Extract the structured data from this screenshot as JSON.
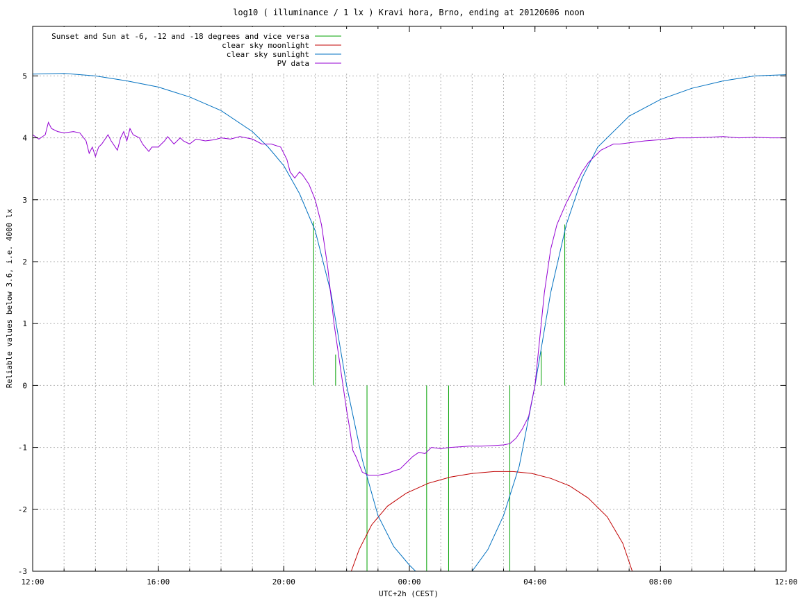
{
  "chart_data": {
    "type": "line",
    "title": "log10 ( illuminance / 1 lx ) Kravi hora, Brno, ending at 20120606 noon",
    "xlabel": "UTC+2h (CEST)",
    "ylabel": "Reliable values below 3.6, i.e. 4000 lx",
    "x_unit": "hours since 12:00 (CEST) on 2012-06-05",
    "xlim": [
      0,
      24
    ],
    "ylim": [
      -3,
      5.8
    ],
    "grid": true,
    "legend_position": "top-left",
    "x_ticks": [
      {
        "value": 0,
        "label": "12:00"
      },
      {
        "value": 4,
        "label": "16:00"
      },
      {
        "value": 8,
        "label": "20:00"
      },
      {
        "value": 12,
        "label": "00:00"
      },
      {
        "value": 16,
        "label": "04:00"
      },
      {
        "value": 20,
        "label": "08:00"
      },
      {
        "value": 24,
        "label": "12:00"
      }
    ],
    "y_ticks": [
      {
        "value": 5,
        "label": "5"
      },
      {
        "value": 4,
        "label": "4"
      },
      {
        "value": 3,
        "label": "3"
      },
      {
        "value": 2,
        "label": "2"
      },
      {
        "value": 1,
        "label": "1"
      },
      {
        "value": 0,
        "label": "0"
      },
      {
        "value": -1,
        "label": "-1"
      },
      {
        "value": -2,
        "label": "-2"
      },
      {
        "value": -3,
        "label": "-3"
      }
    ],
    "series": [
      {
        "name": "Sunset and Sun at -6, -12 and -18 degrees and vice versa",
        "color": "#00a000",
        "style": "impulses",
        "x": [
          8.95,
          9.65,
          10.65,
          12.55,
          13.25,
          15.2,
          16.2,
          16.95
        ],
        "y": [
          2.65,
          0.5,
          0.0,
          0.0,
          0.0,
          0.0,
          0.55,
          2.6
        ]
      },
      {
        "name": "clear sky moonlight",
        "color": "#c00000",
        "x": [
          10.15,
          10.4,
          10.8,
          11.3,
          11.9,
          12.6,
          13.3,
          14.0,
          14.7,
          15.3,
          15.9,
          16.5,
          17.1,
          17.7,
          18.3,
          18.8,
          19.1
        ],
        "y": [
          -3.0,
          -2.65,
          -2.25,
          -1.95,
          -1.74,
          -1.58,
          -1.48,
          -1.42,
          -1.39,
          -1.39,
          -1.42,
          -1.5,
          -1.62,
          -1.82,
          -2.12,
          -2.55,
          -3.0
        ]
      },
      {
        "name": "clear sky sunlight",
        "color": "#0070c0",
        "x": [
          0.0,
          1.0,
          2.0,
          3.0,
          4.0,
          5.0,
          6.0,
          7.0,
          7.5,
          8.0,
          8.5,
          9.0,
          9.5,
          10.0,
          10.5,
          11.0,
          11.5,
          12.0,
          12.5,
          13.0,
          13.5,
          14.0,
          14.5,
          15.0,
          15.5,
          16.0,
          16.5,
          17.0,
          17.5,
          18.0,
          19.0,
          20.0,
          21.0,
          22.0,
          23.0,
          24.0
        ],
        "y": [
          5.03,
          5.04,
          5.0,
          4.92,
          4.82,
          4.66,
          4.44,
          4.1,
          3.85,
          3.55,
          3.1,
          2.5,
          1.5,
          0.0,
          -1.2,
          -2.1,
          -2.6,
          -2.9,
          -3.15,
          -3.25,
          -3.2,
          -3.0,
          -2.65,
          -2.1,
          -1.3,
          0.0,
          1.5,
          2.6,
          3.35,
          3.85,
          4.35,
          4.62,
          4.8,
          4.92,
          5.0,
          5.02
        ]
      },
      {
        "name": "PV data",
        "color": "#9400d3",
        "x": [
          0.0,
          0.2,
          0.4,
          0.5,
          0.6,
          0.8,
          1.0,
          1.3,
          1.5,
          1.7,
          1.8,
          1.9,
          2.0,
          2.1,
          2.2,
          2.4,
          2.5,
          2.7,
          2.8,
          2.9,
          3.0,
          3.1,
          3.2,
          3.4,
          3.5,
          3.7,
          3.8,
          4.0,
          4.2,
          4.3,
          4.5,
          4.7,
          4.8,
          5.0,
          5.2,
          5.5,
          5.8,
          6.0,
          6.3,
          6.6,
          7.0,
          7.3,
          7.6,
          7.9,
          8.1,
          8.2,
          8.35,
          8.5,
          8.6,
          8.8,
          9.0,
          9.2,
          9.4,
          9.6,
          9.8,
          10.0,
          10.1,
          10.2,
          10.3,
          10.5,
          10.7,
          11.0,
          11.3,
          11.5,
          11.7,
          11.9,
          12.1,
          12.3,
          12.5,
          12.7,
          13.0,
          13.3,
          13.6,
          13.9,
          14.3,
          14.7,
          15.0,
          15.2,
          15.4,
          15.6,
          15.8,
          16.0,
          16.1,
          16.2,
          16.3,
          16.5,
          16.7,
          17.0,
          17.3,
          17.5,
          17.7,
          17.9,
          18.1,
          18.3,
          18.5,
          18.7,
          19.0,
          19.5,
          20.0,
          20.5,
          21.0,
          21.5,
          22.0,
          22.5,
          23.0,
          23.5,
          24.0
        ],
        "y": [
          4.05,
          3.98,
          4.05,
          4.25,
          4.15,
          4.1,
          4.08,
          4.1,
          4.08,
          3.95,
          3.75,
          3.85,
          3.7,
          3.85,
          3.9,
          4.05,
          3.95,
          3.8,
          4.0,
          4.1,
          3.95,
          4.15,
          4.05,
          4.0,
          3.9,
          3.78,
          3.85,
          3.85,
          3.95,
          4.02,
          3.9,
          4.0,
          3.95,
          3.9,
          3.98,
          3.95,
          3.97,
          4.0,
          3.98,
          4.02,
          3.98,
          3.9,
          3.9,
          3.85,
          3.65,
          3.45,
          3.35,
          3.45,
          3.4,
          3.25,
          3.0,
          2.6,
          1.9,
          1.0,
          0.3,
          -0.4,
          -0.7,
          -1.05,
          -1.15,
          -1.4,
          -1.45,
          -1.45,
          -1.42,
          -1.38,
          -1.35,
          -1.25,
          -1.15,
          -1.08,
          -1.1,
          -1.0,
          -1.02,
          -1.0,
          -0.99,
          -0.98,
          -0.98,
          -0.97,
          -0.96,
          -0.94,
          -0.85,
          -0.7,
          -0.5,
          0.0,
          0.5,
          1.0,
          1.5,
          2.2,
          2.6,
          2.95,
          3.25,
          3.45,
          3.6,
          3.7,
          3.8,
          3.85,
          3.9,
          3.9,
          3.92,
          3.95,
          3.97,
          4.0,
          4.0,
          4.01,
          4.02,
          4.0,
          4.01,
          4.0,
          4.0
        ]
      }
    ]
  }
}
